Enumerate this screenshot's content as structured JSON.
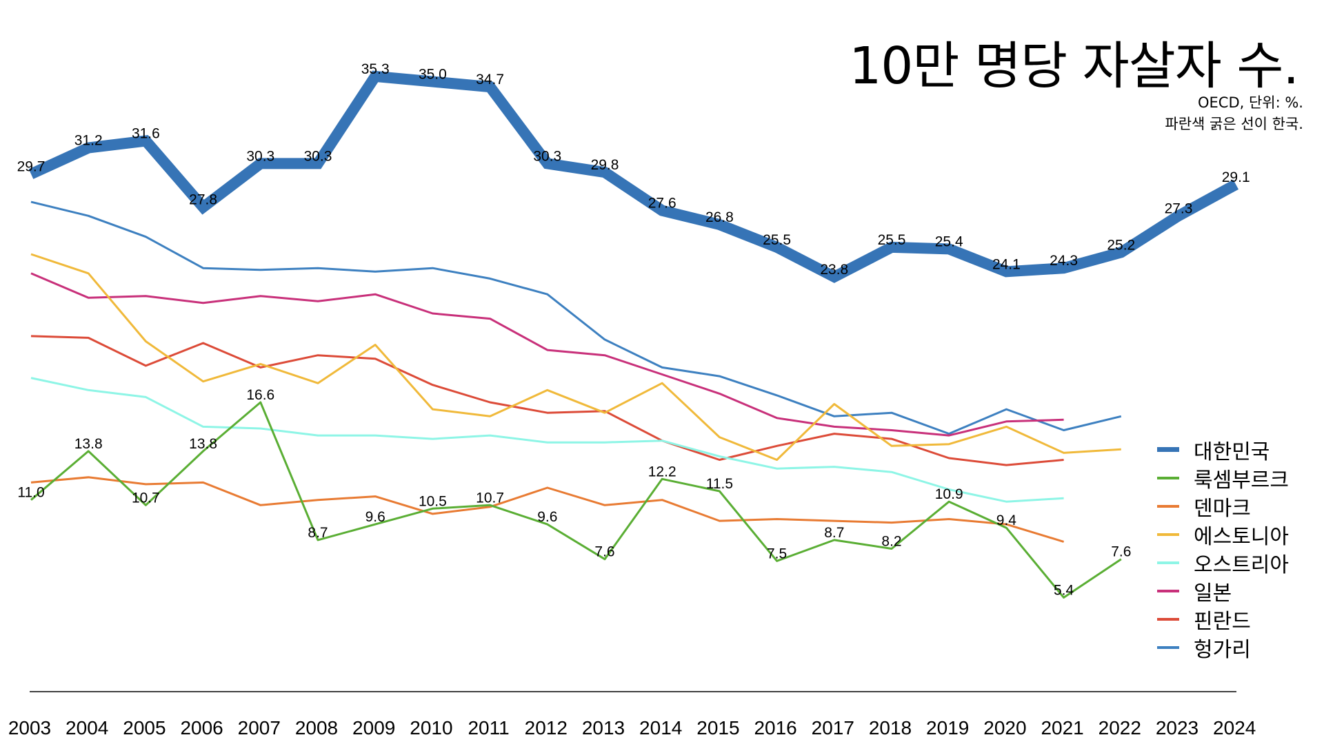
{
  "title": "10만 명당 자살자 수.",
  "subtitle": [
    "OECD, 단위: %.",
    "파란색 굵은 선이 한국."
  ],
  "chart_data": {
    "type": "line",
    "title": "10만 명당 자살자 수.",
    "subtitle": "OECD, 단위: %. 파란색 굵은 선이 한국.",
    "xlabel": "",
    "ylabel": "",
    "x": [
      "2003",
      "2004",
      "2005",
      "2006",
      "2007",
      "2008",
      "2009",
      "2010",
      "2011",
      "2012",
      "2013",
      "2014",
      "2015",
      "2016",
      "2017",
      "2018",
      "2019",
      "2020",
      "2021",
      "2022",
      "2023",
      "2024"
    ],
    "ylim": [
      0,
      36
    ],
    "grid": false,
    "legend_position": "right",
    "series": [
      {
        "name": "대한민국",
        "color": "#3674B6",
        "thick": true,
        "labeled": true,
        "values": [
          29.7,
          31.2,
          31.6,
          27.8,
          30.3,
          30.3,
          35.3,
          35.0,
          34.7,
          30.3,
          29.8,
          27.6,
          26.8,
          25.5,
          23.8,
          25.5,
          25.4,
          24.1,
          24.3,
          25.2,
          27.3,
          29.1
        ]
      },
      {
        "name": "룩셈부르크",
        "color": "#5AAE34",
        "thick": false,
        "labeled": true,
        "values": [
          11.0,
          13.8,
          10.7,
          13.8,
          16.6,
          8.7,
          9.6,
          10.5,
          10.7,
          9.6,
          7.6,
          12.2,
          11.5,
          7.5,
          8.7,
          8.2,
          10.9,
          9.4,
          5.4,
          7.6,
          null,
          null
        ]
      },
      {
        "name": "덴마크",
        "color": "#E87B33",
        "thick": false,
        "labeled": false,
        "values": [
          12.0,
          12.3,
          11.9,
          12.0,
          10.7,
          11.0,
          11.2,
          10.2,
          10.6,
          11.7,
          10.7,
          11.0,
          9.8,
          9.9,
          9.8,
          9.7,
          9.9,
          9.6,
          8.6,
          null,
          null,
          null
        ]
      },
      {
        "name": "에스토니아",
        "color": "#F0B93A",
        "thick": false,
        "labeled": false,
        "values": [
          25.1,
          24.0,
          20.1,
          17.8,
          18.8,
          17.7,
          19.9,
          16.2,
          15.8,
          17.3,
          16.0,
          17.7,
          14.6,
          13.3,
          16.5,
          14.1,
          14.2,
          15.2,
          13.7,
          13.9,
          null,
          null
        ]
      },
      {
        "name": "오스트리아",
        "color": "#8EF5E6",
        "thick": false,
        "labeled": false,
        "values": [
          18.0,
          17.3,
          16.9,
          15.2,
          15.1,
          14.7,
          14.7,
          14.5,
          14.7,
          14.3,
          14.3,
          14.4,
          13.5,
          12.8,
          12.9,
          12.6,
          11.6,
          10.9,
          11.1,
          null,
          null,
          null
        ]
      },
      {
        "name": "일본",
        "color": "#C8307A",
        "thick": false,
        "labeled": false,
        "values": [
          24.0,
          22.6,
          22.7,
          22.3,
          22.7,
          22.4,
          22.8,
          21.7,
          21.4,
          19.6,
          19.3,
          18.2,
          17.1,
          15.7,
          15.2,
          15.0,
          14.7,
          15.5,
          15.6,
          null,
          null,
          null
        ]
      },
      {
        "name": "핀란드",
        "color": "#DC4B38",
        "thick": false,
        "labeled": false,
        "values": [
          20.4,
          20.3,
          18.7,
          20.0,
          18.6,
          19.3,
          19.1,
          17.6,
          16.6,
          16.0,
          16.1,
          14.4,
          13.3,
          14.1,
          14.8,
          14.5,
          13.4,
          13.0,
          13.3,
          null,
          null,
          null
        ]
      },
      {
        "name": "헝가리",
        "color": "#3D80C0",
        "thick": false,
        "labeled": false,
        "values": [
          28.1,
          27.3,
          26.1,
          24.3,
          24.2,
          24.3,
          24.1,
          24.3,
          23.7,
          22.8,
          20.2,
          18.6,
          18.1,
          17.0,
          15.8,
          16.0,
          14.8,
          16.2,
          15.0,
          15.8,
          null,
          null
        ]
      }
    ]
  }
}
